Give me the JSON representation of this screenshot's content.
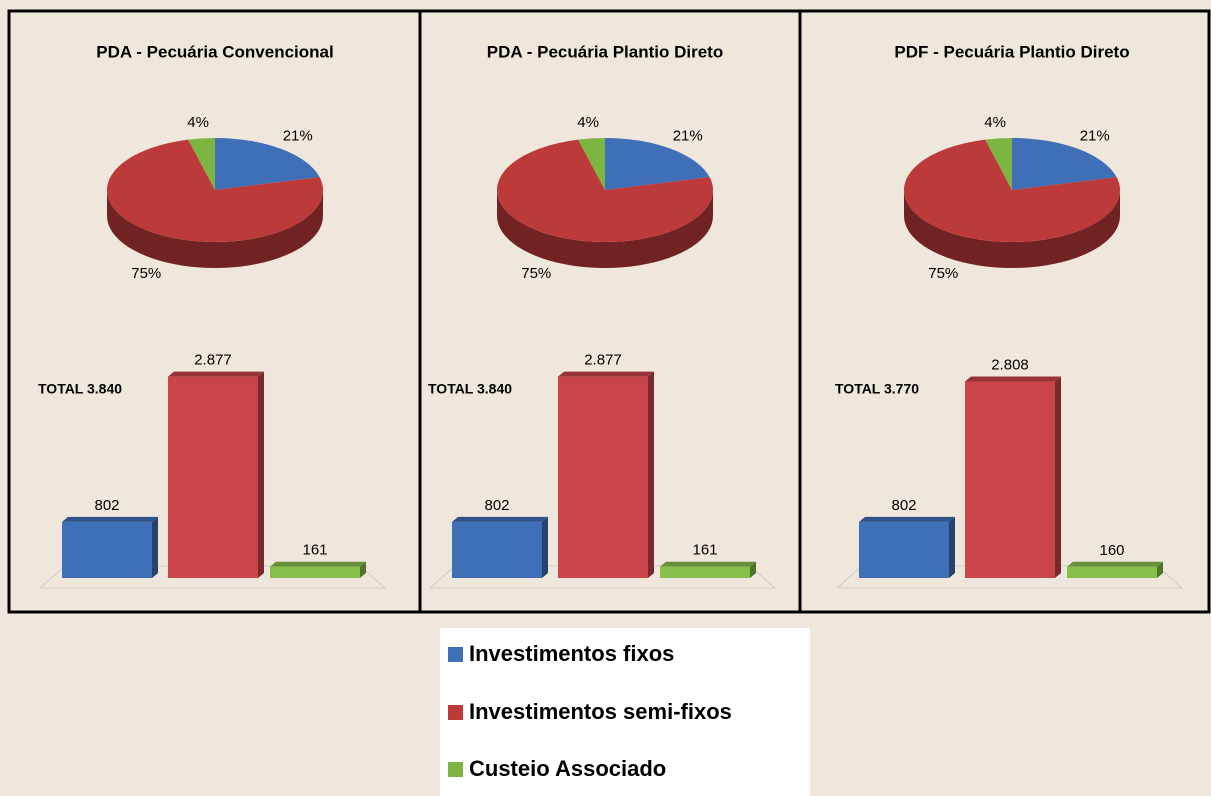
{
  "chart_data": [
    {
      "type": "pie",
      "title": "PDA - Pecuária Convencional",
      "values": [
        21,
        75,
        4
      ],
      "value_labels": [
        "21%",
        "75%",
        "4%"
      ],
      "colors": [
        "#3f6fb6",
        "#bc3a3a",
        "#7db543"
      ]
    },
    {
      "type": "pie",
      "title": "PDA - Pecuária Plantio Direto",
      "values": [
        21,
        75,
        4
      ],
      "value_labels": [
        "21%",
        "75%",
        "4%"
      ],
      "colors": [
        "#3f6fb6",
        "#bc3a3a",
        "#7db543"
      ]
    },
    {
      "type": "pie",
      "title": "PDF - Pecuária Plantio Direto",
      "values": [
        21,
        75,
        4
      ],
      "value_labels": [
        "21%",
        "75%",
        "4%"
      ],
      "colors": [
        "#3f6fb6",
        "#bc3a3a",
        "#7db543"
      ]
    },
    {
      "type": "bar",
      "annotation": "TOTAL 3.840",
      "values": [
        802,
        2877,
        161
      ],
      "value_labels": [
        "802",
        "2.877",
        "161"
      ],
      "colors": [
        "#3f6fb6",
        "#c9454a",
        "#86c04a"
      ]
    },
    {
      "type": "bar",
      "annotation": "TOTAL 3.840",
      "values": [
        802,
        2877,
        161
      ],
      "value_labels": [
        "802",
        "2.877",
        "161"
      ],
      "colors": [
        "#3f6fb6",
        "#c9454a",
        "#86c04a"
      ]
    },
    {
      "type": "bar",
      "annotation": "TOTAL 3.770",
      "values": [
        802,
        2808,
        160
      ],
      "value_labels": [
        "802",
        "2.808",
        "160"
      ],
      "colors": [
        "#3f6fb6",
        "#c9454a",
        "#86c04a"
      ]
    }
  ],
  "legend": {
    "labels": [
      "Investimentos fixos",
      "Investimentos semi-fixos",
      "Custeio Associado"
    ],
    "colors": [
      "#3f6fb6",
      "#bc3a3a",
      "#7db543"
    ]
  }
}
